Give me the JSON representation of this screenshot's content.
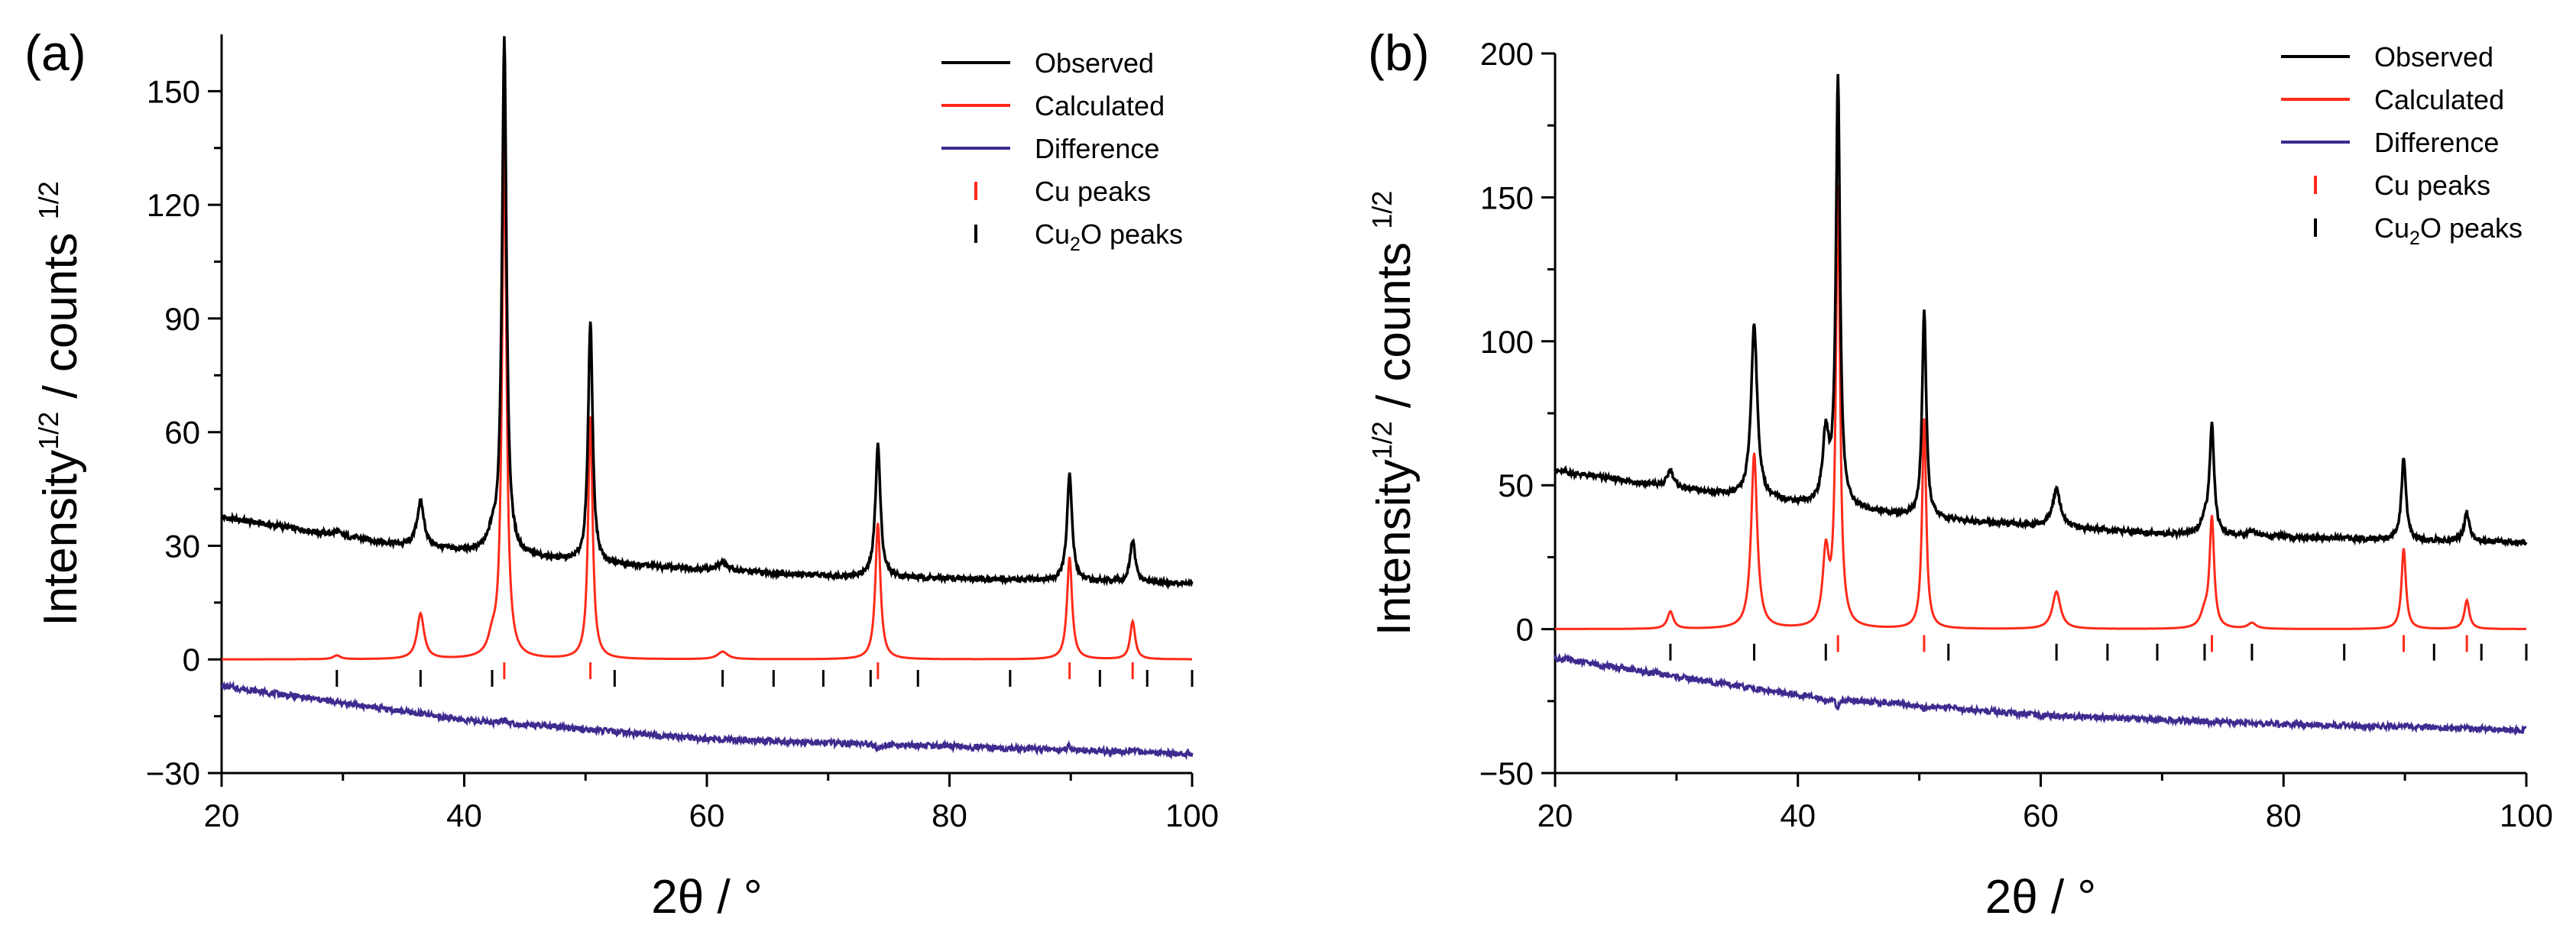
{
  "chart_data": [
    {
      "type": "line",
      "panel_label": "(a)",
      "xlabel": "2θ / °",
      "ylabel": {
        "main": "Intensity",
        "sup1": "1/2",
        "mid": " / counts ",
        "sup2": "1/2"
      },
      "xlim": [
        20,
        100
      ],
      "ylim": [
        -30,
        165
      ],
      "xticks": [
        20,
        40,
        60,
        80,
        100
      ],
      "yticks": [
        -30,
        0,
        30,
        60,
        90,
        120,
        150
      ],
      "legend": [
        "Observed",
        "Calculated",
        "Difference",
        "Cu peaks",
        "Cu2O peaks"
      ],
      "legend_position": "top-right",
      "colors": {
        "observed": "#000000",
        "calculated": "#ff2a1a",
        "difference": "#3f2a8f",
        "cu_ticks": "#ff2a1a",
        "cu2o_ticks": "#000000"
      },
      "baseline": {
        "observed": [
          [
            20,
            37.5
          ],
          [
            35,
            30
          ],
          [
            52,
            25
          ],
          [
            70,
            22
          ],
          [
            100,
            20
          ]
        ],
        "calculated": [
          [
            20,
            0
          ],
          [
            100,
            0
          ]
        ],
        "difference": [
          [
            20,
            -7
          ],
          [
            40,
            -16
          ],
          [
            60,
            -21
          ],
          [
            80,
            -23
          ],
          [
            100,
            -25
          ]
        ]
      },
      "peaks": [
        {
          "pos": 29.5,
          "obs": 1,
          "calc": 1,
          "w": 0.35
        },
        {
          "pos": 36.4,
          "obs": 12,
          "calc": 12,
          "w": 0.35
        },
        {
          "pos": 42.3,
          "obs": 4,
          "calc": 4,
          "w": 0.4
        },
        {
          "pos": 43.3,
          "obs": 136,
          "calc": 135,
          "w": 0.22
        },
        {
          "pos": 50.4,
          "obs": 64,
          "calc": 64,
          "w": 0.22
        },
        {
          "pos": 61.3,
          "obs": 2,
          "calc": 2,
          "w": 0.5
        },
        {
          "pos": 74.1,
          "obs": 35,
          "calc": 36,
          "w": 0.25
        },
        {
          "pos": 89.9,
          "obs": 28,
          "calc": 27,
          "w": 0.25
        },
        {
          "pos": 95.1,
          "obs": 11,
          "calc": 10,
          "w": 0.25
        }
      ],
      "cu_tick_positions": [
        43.3,
        50.4,
        74.1,
        89.9,
        95.1
      ],
      "cu2o_tick_positions": [
        29.5,
        36.4,
        42.3,
        52.4,
        61.3,
        65.5,
        69.6,
        73.5,
        77.4,
        85.0,
        92.4,
        96.3,
        100.0
      ],
      "tick_row_y": {
        "cu": -3,
        "cu2o": -5
      }
    },
    {
      "type": "line",
      "panel_label": "(b)",
      "xlabel": "2θ / °",
      "ylabel": {
        "main": "Intensity",
        "sup1": "1/2",
        "mid": " / counts ",
        "sup2": "1/2"
      },
      "xlim": [
        20,
        100
      ],
      "ylim": [
        -50,
        200
      ],
      "xticks": [
        20,
        40,
        60,
        80,
        100
      ],
      "yticks": [
        -50,
        0,
        50,
        100,
        150,
        200
      ],
      "legend": [
        "Observed",
        "Calculated",
        "Difference",
        "Cu peaks",
        "Cu2O peaks"
      ],
      "legend_position": "top-right",
      "colors": {
        "observed": "#000000",
        "calculated": "#ff2a1a",
        "difference": "#3f2a8f",
        "cu_ticks": "#ff2a1a",
        "cu2o_ticks": "#000000"
      },
      "baseline": {
        "observed": [
          [
            20,
            55
          ],
          [
            35,
            46
          ],
          [
            52,
            38
          ],
          [
            70,
            33
          ],
          [
            100,
            30
          ]
        ],
        "calculated": [
          [
            20,
            0
          ],
          [
            100,
            0
          ]
        ],
        "difference": [
          [
            20,
            -10
          ],
          [
            40,
            -23
          ],
          [
            60,
            -30
          ],
          [
            80,
            -33
          ],
          [
            100,
            -35
          ]
        ]
      },
      "peaks": [
        {
          "pos": 29.5,
          "obs": 6,
          "calc": 6,
          "w": 0.3
        },
        {
          "pos": 36.4,
          "obs": 61,
          "calc": 61,
          "w": 0.3
        },
        {
          "pos": 42.3,
          "obs": 24,
          "calc": 25,
          "w": 0.3
        },
        {
          "pos": 43.3,
          "obs": 149,
          "calc": 152,
          "w": 0.2
        },
        {
          "pos": 50.4,
          "obs": 72,
          "calc": 73,
          "w": 0.2
        },
        {
          "pos": 61.3,
          "obs": 13,
          "calc": 13,
          "w": 0.4
        },
        {
          "pos": 73.5,
          "obs": 5,
          "calc": 5,
          "w": 0.4
        },
        {
          "pos": 74.1,
          "obs": 37,
          "calc": 38,
          "w": 0.22
        },
        {
          "pos": 77.4,
          "obs": 2,
          "calc": 2,
          "w": 0.4
        },
        {
          "pos": 89.9,
          "obs": 29,
          "calc": 28,
          "w": 0.22
        },
        {
          "pos": 95.1,
          "obs": 10,
          "calc": 10,
          "w": 0.25
        }
      ],
      "cu_tick_positions": [
        43.3,
        50.4,
        74.1,
        89.9,
        95.1
      ],
      "cu2o_tick_positions": [
        29.5,
        36.4,
        42.3,
        52.4,
        61.3,
        65.5,
        69.6,
        73.5,
        77.4,
        85.0,
        92.4,
        96.3,
        100.0
      ],
      "tick_row_y": {
        "cu": -5,
        "cu2o": -8
      }
    }
  ]
}
